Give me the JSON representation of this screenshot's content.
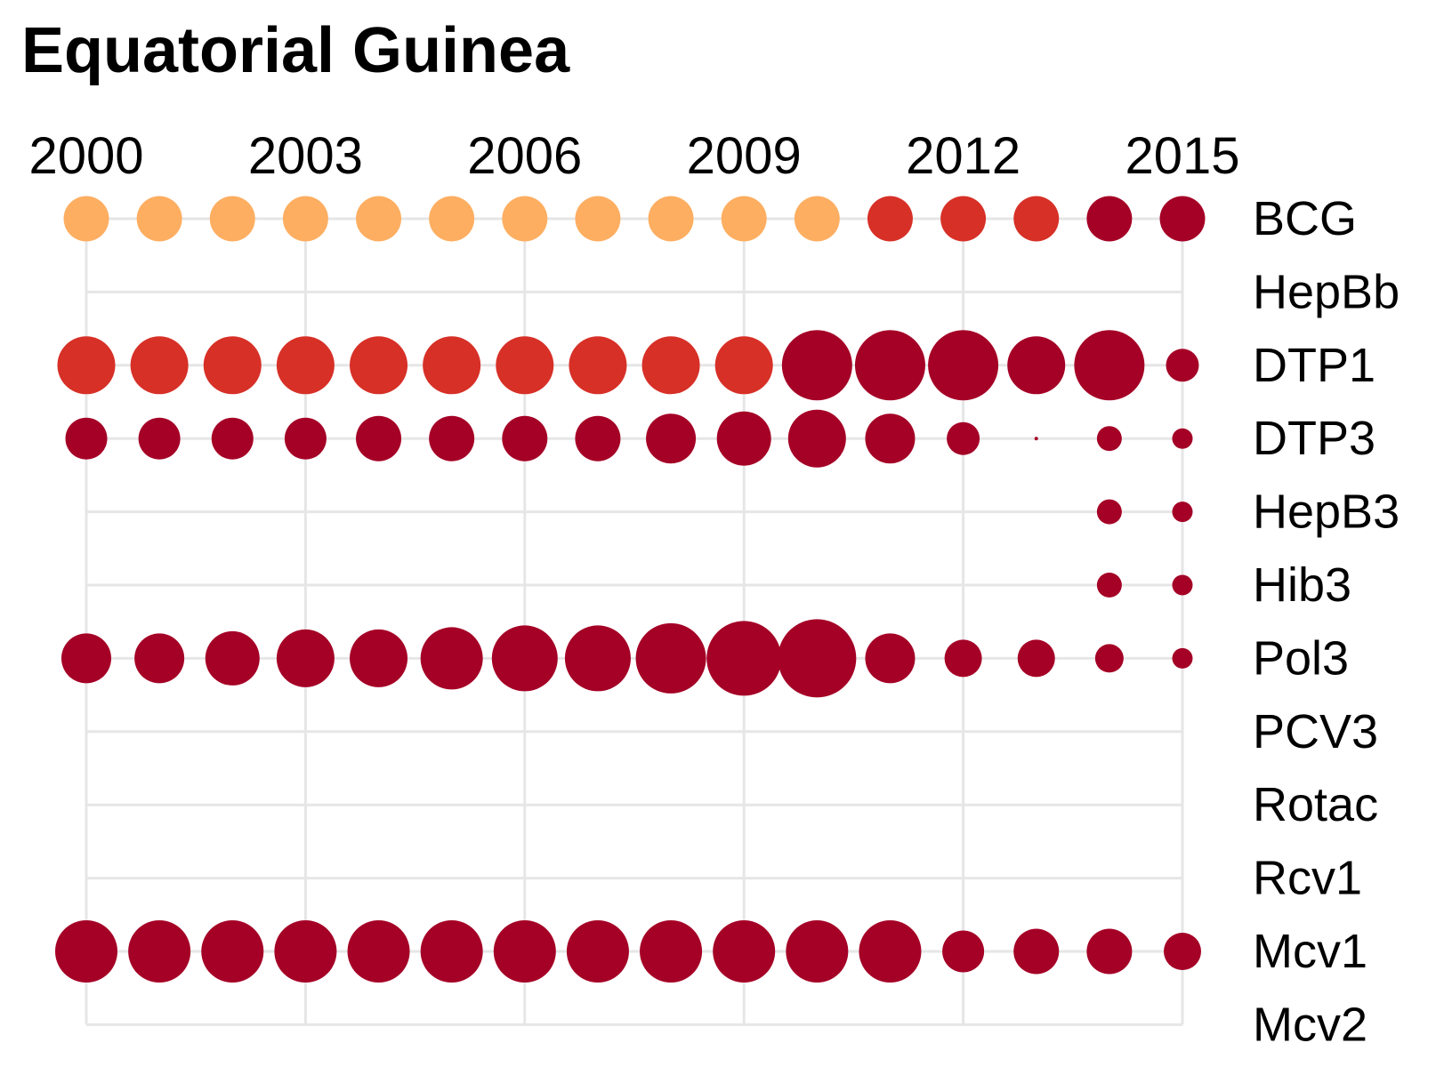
{
  "chart_data": {
    "type": "scatter",
    "title": "Equatorial Guinea",
    "xlabel": "",
    "ylabel": "",
    "x_ticks": [
      2000,
      2003,
      2006,
      2009,
      2012,
      2015
    ],
    "xlim": [
      2000,
      2015
    ],
    "x_axis_position": "top",
    "y_axis_position": "right",
    "grid": true,
    "legend": "none",
    "colors": {
      "light": "#fdae61",
      "mid": "#d73027",
      "dark": "#a50026",
      "grid": "#e6e6e6"
    },
    "years": [
      2000,
      2001,
      2002,
      2003,
      2004,
      2005,
      2006,
      2007,
      2008,
      2009,
      2010,
      2011,
      2012,
      2013,
      2014,
      2015
    ],
    "series": [
      {
        "name": "BCG",
        "size": [
          51,
          51,
          51,
          51,
          51,
          51,
          51,
          51,
          51,
          51,
          51,
          51,
          51,
          51,
          51,
          51
        ],
        "color": [
          "light",
          "light",
          "light",
          "light",
          "light",
          "light",
          "light",
          "light",
          "light",
          "light",
          "light",
          "mid",
          "mid",
          "mid",
          "dark",
          "dark"
        ]
      },
      {
        "name": "HepBb",
        "size": [],
        "color": []
      },
      {
        "name": "DTP1",
        "size": [
          65,
          65,
          65,
          65,
          65,
          65,
          65,
          65,
          65,
          65,
          79,
          79,
          79,
          65,
          79,
          37
        ],
        "color": [
          "mid",
          "mid",
          "mid",
          "mid",
          "mid",
          "mid",
          "mid",
          "mid",
          "mid",
          "mid",
          "dark",
          "dark",
          "dark",
          "dark",
          "dark",
          "dark"
        ]
      },
      {
        "name": "DTP3",
        "size": [
          47,
          47,
          47,
          47,
          51,
          51,
          51,
          51,
          56,
          61,
          65,
          56,
          37,
          4,
          28,
          23
        ],
        "color": [
          "dark",
          "dark",
          "dark",
          "dark",
          "dark",
          "dark",
          "dark",
          "dark",
          "dark",
          "dark",
          "dark",
          "dark",
          "dark",
          "dark",
          "dark",
          "dark"
        ]
      },
      {
        "name": "HepB3",
        "size": [
          null,
          null,
          null,
          null,
          null,
          null,
          null,
          null,
          null,
          null,
          null,
          null,
          null,
          null,
          28,
          23
        ],
        "color": [
          "dark",
          "dark",
          "dark",
          "dark",
          "dark",
          "dark",
          "dark",
          "dark",
          "dark",
          "dark",
          "dark",
          "dark",
          "dark",
          "dark",
          "dark",
          "dark"
        ]
      },
      {
        "name": "Hib3",
        "size": [
          null,
          null,
          null,
          null,
          null,
          null,
          null,
          null,
          null,
          null,
          null,
          null,
          null,
          null,
          28,
          23
        ],
        "color": [
          "dark",
          "dark",
          "dark",
          "dark",
          "dark",
          "dark",
          "dark",
          "dark",
          "dark",
          "dark",
          "dark",
          "dark",
          "dark",
          "dark",
          "dark",
          "dark"
        ]
      },
      {
        "name": "Pol3",
        "size": [
          56,
          56,
          61,
          65,
          65,
          70,
          74,
          74,
          79,
          84,
          88,
          56,
          42,
          42,
          32,
          23
        ],
        "color": [
          "dark",
          "dark",
          "dark",
          "dark",
          "dark",
          "dark",
          "dark",
          "dark",
          "dark",
          "dark",
          "dark",
          "dark",
          "dark",
          "dark",
          "dark",
          "dark"
        ]
      },
      {
        "name": "PCV3",
        "size": [],
        "color": []
      },
      {
        "name": "Rotac",
        "size": [],
        "color": []
      },
      {
        "name": "Rcv1",
        "size": [],
        "color": []
      },
      {
        "name": "Mcv1",
        "size": [
          70,
          70,
          70,
          70,
          70,
          70,
          70,
          70,
          70,
          70,
          70,
          70,
          47,
          51,
          51,
          42
        ],
        "color": [
          "dark",
          "dark",
          "dark",
          "dark",
          "dark",
          "dark",
          "dark",
          "dark",
          "dark",
          "dark",
          "dark",
          "dark",
          "dark",
          "dark",
          "dark",
          "dark"
        ]
      },
      {
        "name": "Mcv2",
        "size": [],
        "color": []
      }
    ]
  }
}
